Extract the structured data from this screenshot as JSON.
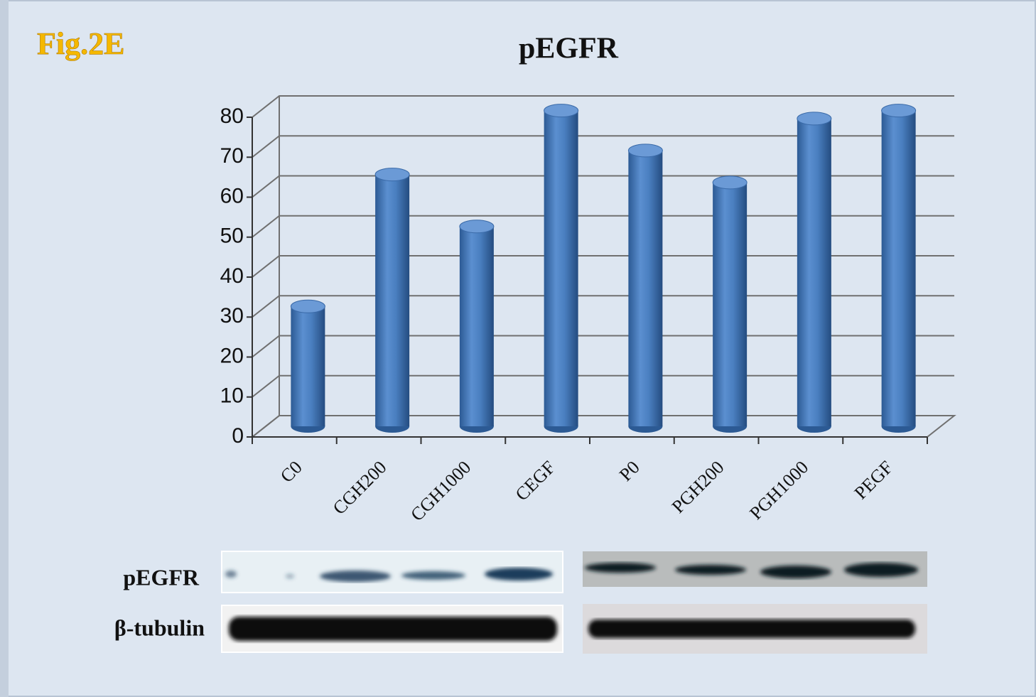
{
  "figure_label": "Fig.2E",
  "chart_data": {
    "type": "bar",
    "title": "pEGFR",
    "categories": [
      "C0",
      "CGH200",
      "CGH1000",
      "CEGF",
      "P0",
      "PGH200",
      "PGH1000",
      "PEGF"
    ],
    "values": [
      30,
      63,
      50,
      79,
      69,
      61,
      77,
      79
    ],
    "color": "#4a7fc0",
    "ylim": [
      0,
      80
    ],
    "yticks": [
      0,
      10,
      20,
      30,
      40,
      50,
      60,
      70,
      80
    ],
    "grid": true,
    "three_d": true
  },
  "blot": {
    "rows": [
      "pEGFR",
      "β-tubulin"
    ]
  }
}
